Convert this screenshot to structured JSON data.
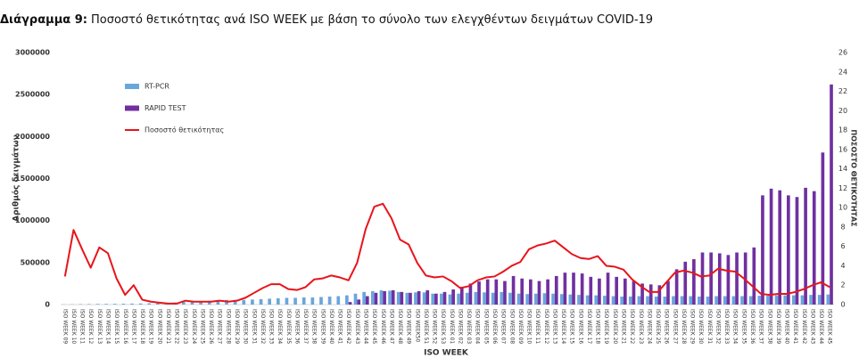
{
  "chart_data": {
    "type": "bar",
    "title_label": "Διάγραμμα 9:",
    "title": "Ποσοστό θετικότητας ανά ISO WEEK με βάση το σύνολο των ελεγχθέντων δειγμάτων COVID-19",
    "x_label": "ISO WEEK",
    "y_label": "Αριθμός δειγμάτων",
    "y2_label": "ΠΟΣΟΣΤΟ ΘΕΤΙΚΟΤΗΤΑΣ",
    "categories": [
      "ISO WEEK 09",
      "ISO WEEK 10",
      "ISO WEEK 11",
      "ISO WEEK 12",
      "ISO WEEK 13",
      "ISO WEEK 14",
      "ISO WEEK 15",
      "ISO WEEK 16",
      "ISO WEEK 17",
      "ISO WEEK 18",
      "ISO WEEK 19",
      "ISO WEEK 20",
      "ISO WEEK 21",
      "ISO WEEK 22",
      "ISO WEEK 23",
      "ISO WEEK 24",
      "ISO WEEK 25",
      "ISO WEEK 26",
      "ISO WEEK 27",
      "ISO WEEK 28",
      "ISO WEEK 29",
      "ISO WEEK 30",
      "ISO WEEK 31",
      "ISO WEEK 32",
      "ISO WEEK 33",
      "ISO WEEK 34",
      "ISO WEEK 35",
      "ISO WEEK 36",
      "ISO WEEK 37",
      "ISO WEEK 38",
      "ISO WEEK 39",
      "ISO WEEK 40",
      "ISO WEEK 41",
      "ISO WEEK 42",
      "ISO WEEK 43",
      "ISO WEEK 44",
      "ISO WEEK 45",
      "ISO WEEK 46",
      "ISO WEEK 47",
      "ISO WEEK 48",
      "ISO WEEK 49",
      "ISO WEEK50",
      "ISO WEEK 51",
      "ISO WEEK 52",
      "ISO WEEK 53",
      "ISO WEEK 01",
      "ISO WEEK 02",
      "ISO WEEK 03",
      "ISO WEEK 04",
      "ISO WEEK 05",
      "ISO WEEK 06",
      "ISO WEEK 07",
      "ISO WEEK 08",
      "ISO WEEK 09",
      "ISO WEEK 10",
      "ISO WEEK 11",
      "ISO WEEK 12",
      "ISO WEEK 13",
      "ISO WEEK 14",
      "ISO WEEK 15",
      "ISO WEEK 16",
      "ISO WEEK 17",
      "ISO WEEK 18",
      "ISO WEEK 19",
      "ISO WEEK 20",
      "ISO WEEK 21",
      "ISO WEEK 22",
      "ISO WEEK 23",
      "ISO WEEK 24",
      "ISO WEEK 25",
      "ISO WEEK 26",
      "ISO WEEK 27",
      "ISO WEEK 28",
      "ISO WEEK 29",
      "ISO WEEK 30",
      "ISO WEEK 31",
      "ISO WEEK 32",
      "ISO WEEK 33",
      "ISO WEEK 34",
      "ISO WEEK 35",
      "ISO WEEK 36",
      "ISO WEEK 37",
      "ISO WEEK 38",
      "ISO WEEK 39",
      "ISO WEEK 40",
      "ISO WEEK 41",
      "ISO WEEK 42",
      "ISO WEEK 43",
      "ISO WEEK 44",
      "ISO WEEK 45"
    ],
    "series": [
      {
        "name": "RT-PCR",
        "type": "bar",
        "color": "#6aa6dc",
        "values": [
          2000,
          3000,
          5000,
          6000,
          8000,
          8000,
          9000,
          10000,
          12000,
          13000,
          15000,
          18000,
          20000,
          25000,
          30000,
          35000,
          40000,
          45000,
          50000,
          55000,
          55000,
          55000,
          60000,
          65000,
          70000,
          75000,
          80000,
          80000,
          85000,
          85000,
          90000,
          95000,
          100000,
          110000,
          130000,
          150000,
          160000,
          170000,
          165000,
          150000,
          140000,
          145000,
          145000,
          130000,
          130000,
          120000,
          130000,
          140000,
          150000,
          145000,
          140000,
          150000,
          140000,
          130000,
          125000,
          130000,
          135000,
          130000,
          125000,
          120000,
          115000,
          110000,
          110000,
          105000,
          100000,
          95000,
          95000,
          100000,
          100000,
          95000,
          95000,
          100000,
          100000,
          100000,
          95000,
          95000,
          100000,
          100000,
          100000,
          100000,
          100000,
          105000,
          105000,
          110000,
          110000,
          110000,
          110000,
          115000,
          115000,
          120000
        ]
      },
      {
        "name": "RAPID TEST",
        "type": "bar",
        "color": "#7030a0",
        "values": [
          0,
          0,
          0,
          0,
          0,
          0,
          0,
          0,
          0,
          0,
          0,
          0,
          0,
          0,
          0,
          0,
          0,
          0,
          0,
          0,
          0,
          0,
          0,
          0,
          0,
          0,
          0,
          0,
          0,
          0,
          0,
          0,
          0,
          30000,
          60000,
          100000,
          140000,
          160000,
          170000,
          150000,
          140000,
          160000,
          170000,
          130000,
          150000,
          180000,
          210000,
          250000,
          275000,
          300000,
          300000,
          280000,
          340000,
          310000,
          300000,
          280000,
          300000,
          340000,
          380000,
          380000,
          370000,
          330000,
          310000,
          380000,
          330000,
          310000,
          280000,
          250000,
          240000,
          230000,
          280000,
          420000,
          510000,
          540000,
          620000,
          620000,
          610000,
          590000,
          620000,
          620000,
          680000,
          1300000,
          1380000,
          1360000,
          1300000,
          1280000,
          1390000,
          1350000,
          1810000,
          2620000
        ]
      },
      {
        "name": "Ποσοστό θετικότητας",
        "type": "line",
        "axis": "y2",
        "color": "#e8141b",
        "values": [
          2.9,
          7.7,
          5.7,
          3.8,
          5.9,
          5.3,
          2.7,
          1.0,
          2.0,
          0.5,
          0.3,
          0.2,
          0.1,
          0.1,
          0.4,
          0.3,
          0.3,
          0.3,
          0.4,
          0.3,
          0.4,
          0.7,
          1.2,
          1.7,
          2.1,
          2.1,
          1.6,
          1.5,
          1.8,
          2.6,
          2.7,
          3.0,
          2.8,
          2.5,
          4.3,
          7.8,
          10.1,
          10.4,
          8.9,
          6.7,
          6.2,
          4.3,
          3.0,
          2.8,
          2.9,
          2.4,
          1.7,
          1.9,
          2.5,
          2.8,
          2.9,
          3.4,
          4.0,
          4.4,
          5.7,
          6.1,
          6.3,
          6.6,
          5.9,
          5.2,
          4.8,
          4.7,
          5.0,
          4.0,
          3.9,
          3.6,
          2.6,
          1.9,
          1.3,
          1.3,
          2.3,
          3.3,
          3.5,
          3.3,
          2.9,
          3.0,
          3.7,
          3.5,
          3.4,
          2.7,
          1.9,
          1.1,
          1.0,
          1.1,
          1.1,
          1.3,
          1.6,
          2.0,
          2.3,
          1.8
        ]
      }
    ],
    "ylim": [
      0,
      3000000
    ],
    "yticks": [
      0,
      500000,
      1000000,
      1500000,
      2000000,
      2500000,
      3000000
    ],
    "y2lim": [
      0,
      26
    ],
    "y2ticks": [
      0,
      2,
      4,
      6,
      8,
      10,
      12,
      14,
      16,
      18,
      20,
      22,
      24,
      26
    ],
    "grid": false,
    "legend": "upper-left"
  }
}
